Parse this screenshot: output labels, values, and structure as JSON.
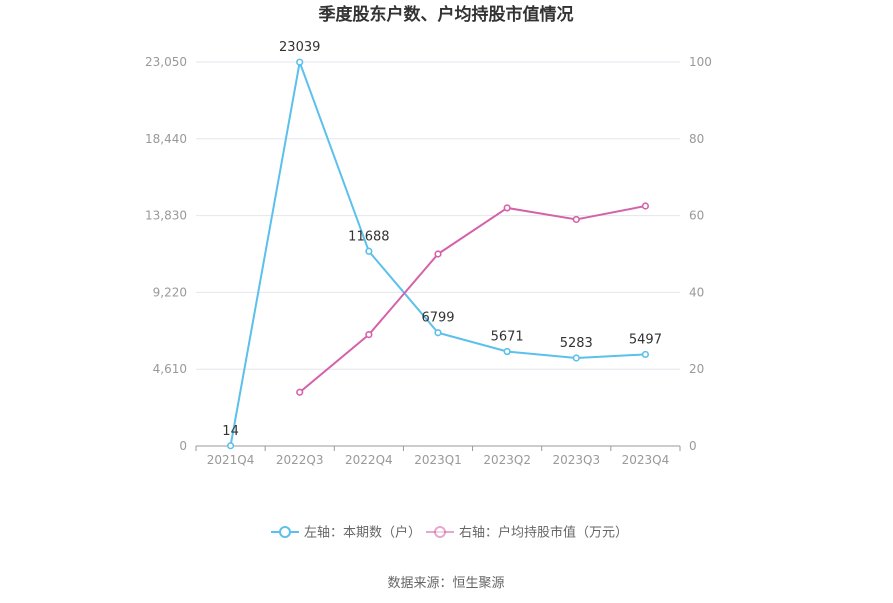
{
  "chart_data": {
    "type": "line",
    "title": "季度股东户数、户均持股市值情况",
    "categories": [
      "2021Q4",
      "2022Q3",
      "2022Q4",
      "2023Q1",
      "2023Q2",
      "2023Q3",
      "2023Q4"
    ],
    "y_left": {
      "ticks": [
        "0",
        "4,610",
        "9,220",
        "13,830",
        "18,440",
        "23,050"
      ],
      "ylim": [
        0,
        23050
      ]
    },
    "y_right": {
      "ticks": [
        "0",
        "20",
        "40",
        "60",
        "80",
        "100"
      ],
      "ylim": [
        0,
        100
      ]
    },
    "series": [
      {
        "name": "左轴：本期数（户）",
        "axis": "left",
        "color": "#5bc0eb",
        "values": [
          14,
          23039,
          11688,
          6799,
          5671,
          5283,
          5497
        ],
        "labels": [
          "14",
          "23039",
          "11688",
          "6799",
          "5671",
          "5283",
          "5497"
        ]
      },
      {
        "name": "右轴：户均持股市值（万元）",
        "axis": "right",
        "color": "#d462a8",
        "values": [
          null,
          14.0,
          29.0,
          50.0,
          62.0,
          59.0,
          62.5
        ]
      }
    ],
    "legend_position": "bottom",
    "grid": true
  },
  "source": "数据来源：恒生聚源"
}
